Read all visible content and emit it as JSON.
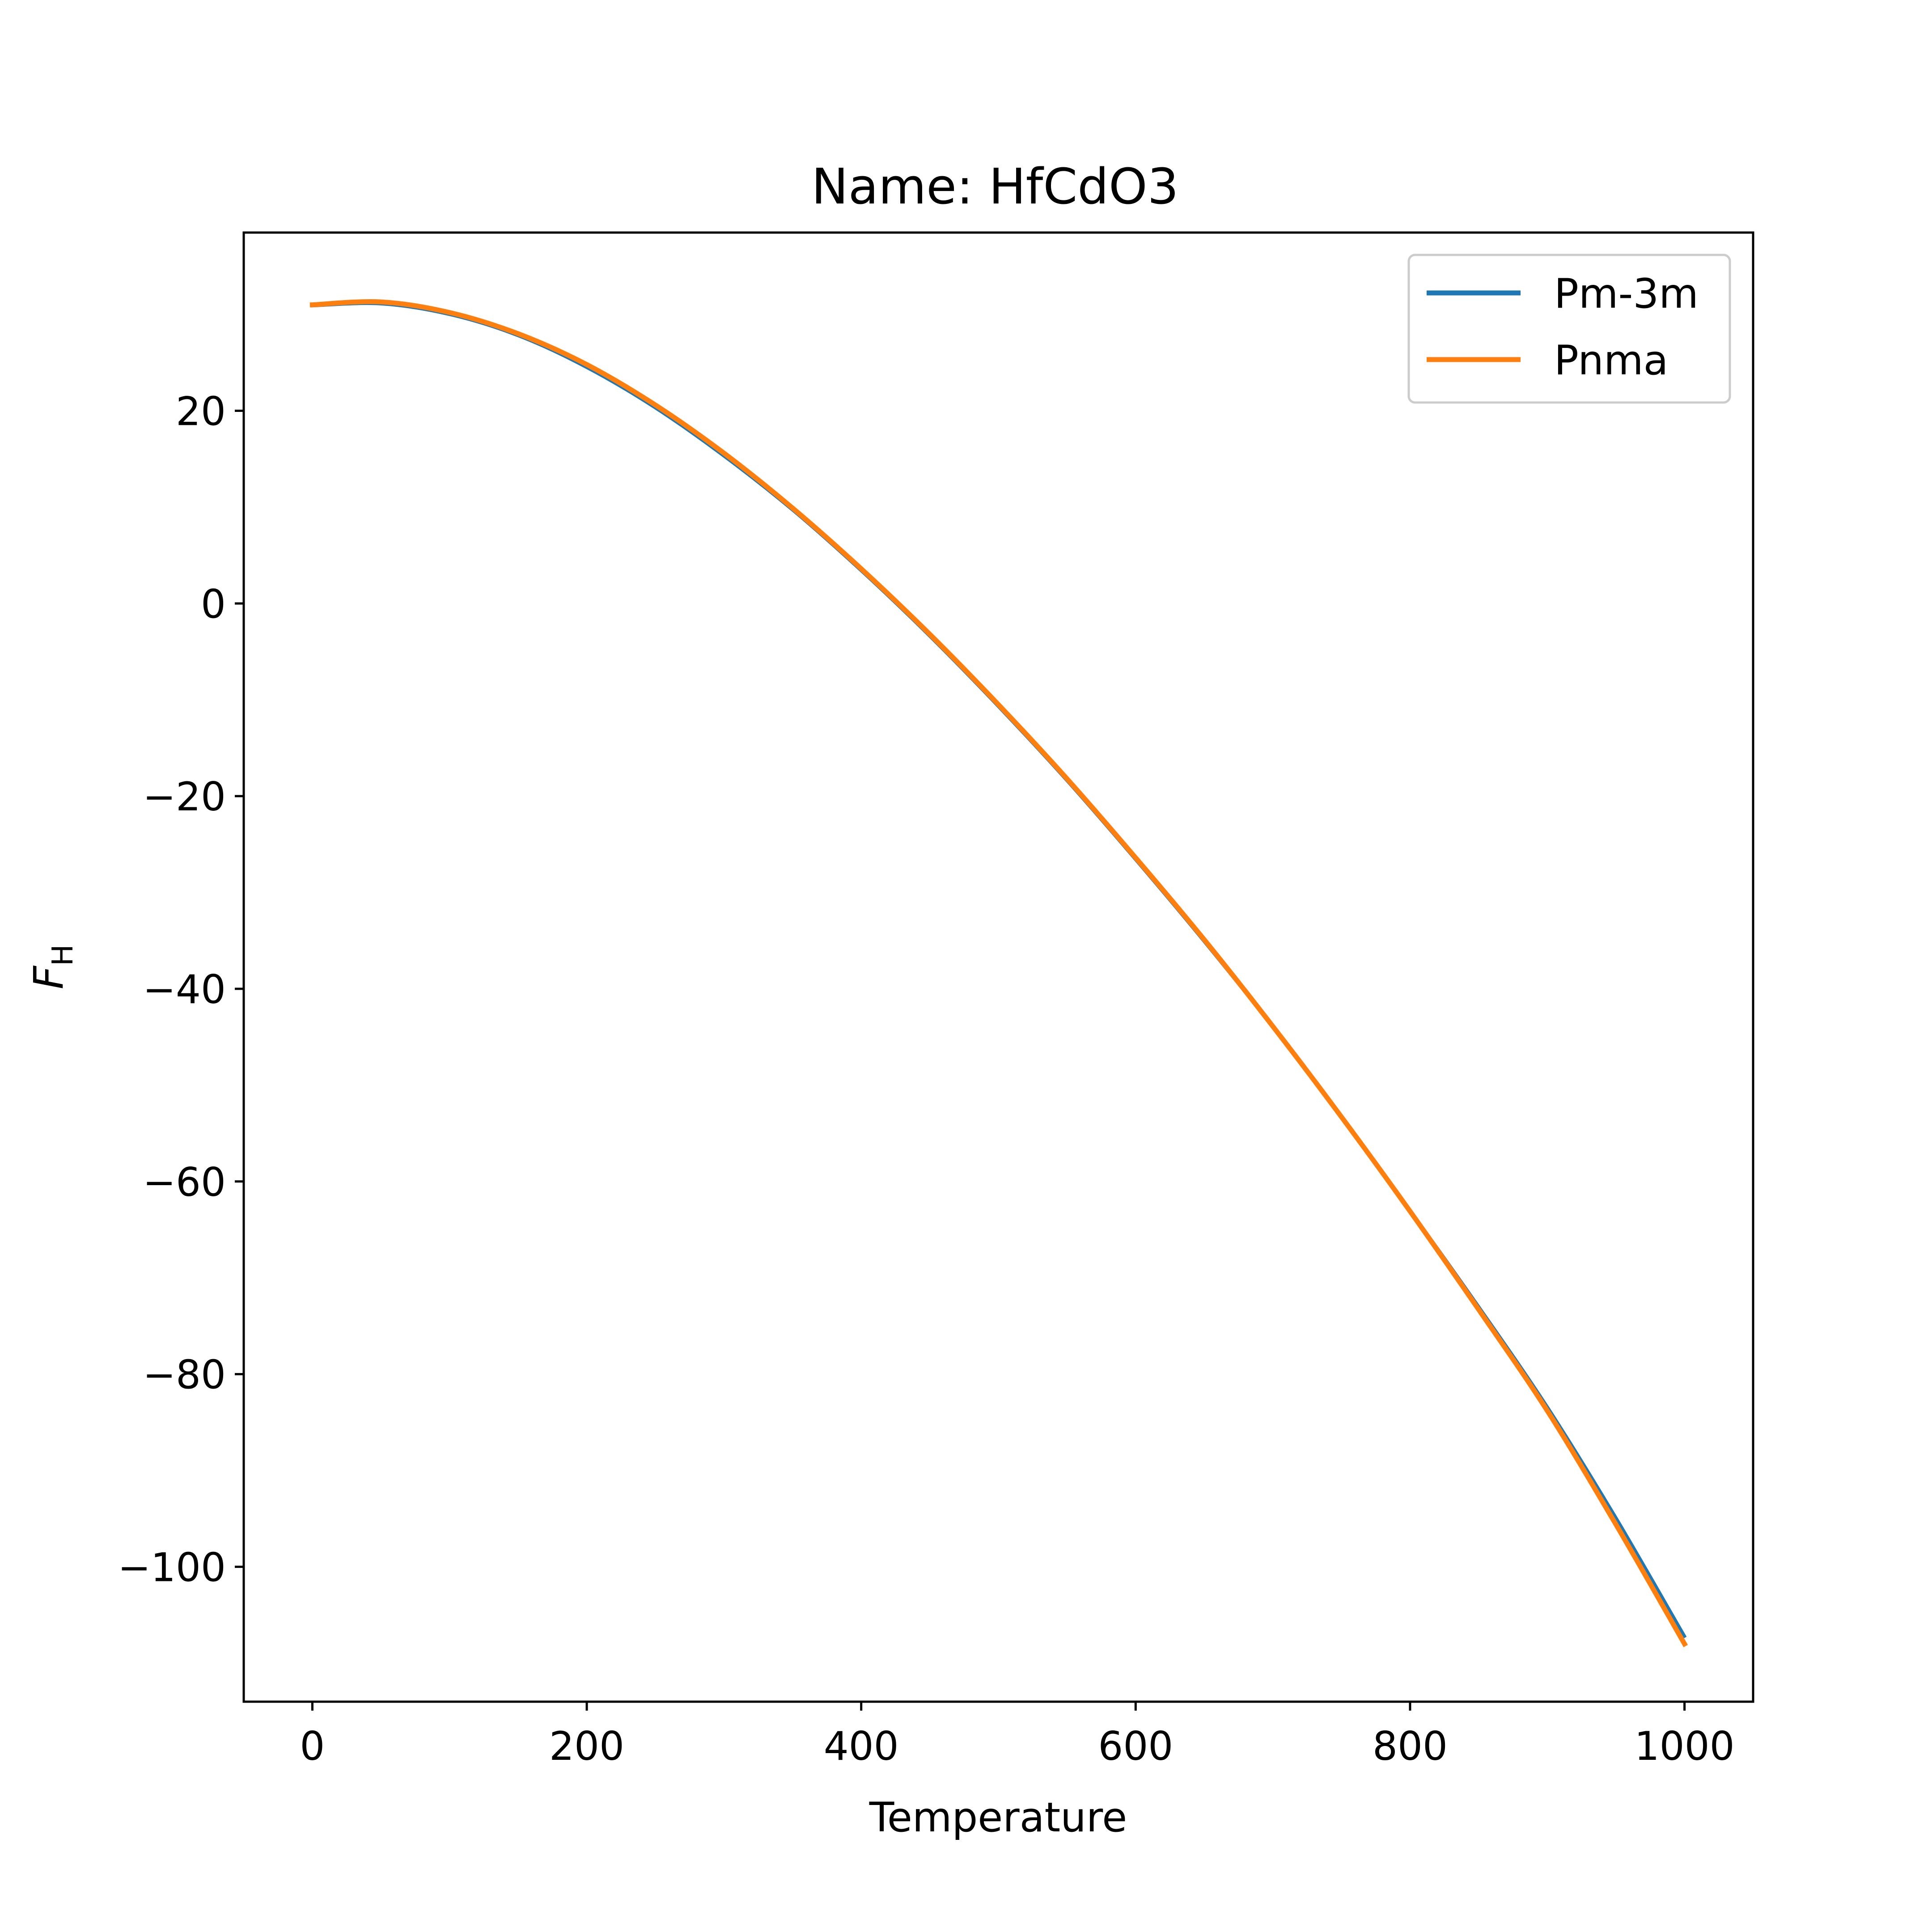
{
  "chart_data": {
    "type": "line",
    "title": "Name: HfCdO3",
    "xlabel": "Temperature",
    "ylabel": {
      "main": "F",
      "sub": "H"
    },
    "xlim": [
      -50,
      1050
    ],
    "ylim": [
      -114,
      38.5
    ],
    "xticks": [
      0,
      200,
      400,
      600,
      800,
      1000
    ],
    "yticks": [
      -100,
      -80,
      -60,
      -40,
      -20,
      0,
      20
    ],
    "tick_labels": {
      "x": [
        "0",
        "200",
        "400",
        "600",
        "800",
        "1000"
      ],
      "y": [
        "−100",
        "−80",
        "−60",
        "−40",
        "−20",
        "0",
        "20"
      ]
    },
    "legend_position": "top-right",
    "grid": false,
    "x": [
      0,
      50,
      100,
      150,
      200,
      250,
      300,
      350,
      400,
      450,
      500,
      550,
      600,
      650,
      700,
      750,
      800,
      850,
      900,
      950,
      1000
    ],
    "series": [
      {
        "name": "Pm-3m",
        "color": "#1f77b4",
        "values": [
          30.9,
          31.1,
          30.0,
          27.8,
          24.5,
          20.3,
          15.3,
          9.7,
          3.4,
          -3.4,
          -10.7,
          -18.4,
          -26.6,
          -35.1,
          -44.0,
          -53.4,
          -63.0,
          -73.0,
          -83.4,
          -94.9,
          -107.2
        ]
      },
      {
        "name": "Pnma",
        "color": "#ff7f0e",
        "values": [
          31.0,
          31.3,
          30.2,
          28.0,
          24.8,
          20.6,
          15.6,
          9.9,
          3.6,
          -3.2,
          -10.5,
          -18.2,
          -26.4,
          -34.9,
          -43.9,
          -53.3,
          -63.1,
          -73.3,
          -83.8,
          -95.6,
          -108.0
        ]
      }
    ]
  }
}
